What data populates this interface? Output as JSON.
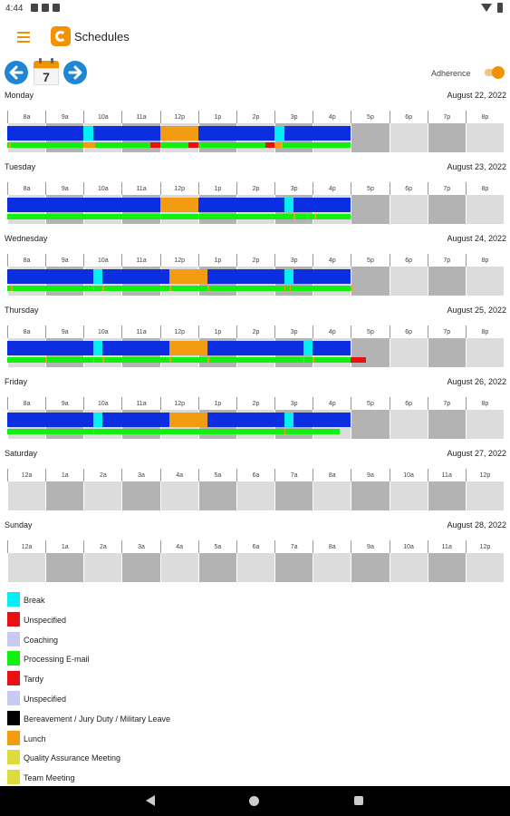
{
  "status": {
    "time": "4:44"
  },
  "app": {
    "title": "Schedules"
  },
  "nav": {
    "calendar_day": "7",
    "adherence_label": "Adherence",
    "adherence_on": true
  },
  "colors": {
    "schedule": "#0a2ee0",
    "break": "#00f0f5",
    "lunch": "#f39c12",
    "adherence": "#12f012",
    "tardy": "#e81111",
    "gap": "#b0b0b0",
    "odd_column": "#b3b3b3",
    "even_column": "#dcdcdc"
  },
  "days": [
    {
      "name": "Monday",
      "date": "August 22, 2022",
      "hours": [
        "8a",
        "9a",
        "10a",
        "11a",
        "12p",
        "1p",
        "2p",
        "3p",
        "4p",
        "5p",
        "6p",
        "7p",
        "8p"
      ],
      "schedule": [
        {
          "type": "schedule",
          "start": 0,
          "end": 2.0
        },
        {
          "type": "break",
          "start": 2.0,
          "end": 2.25
        },
        {
          "type": "schedule",
          "start": 2.25,
          "end": 4.0
        },
        {
          "type": "lunch",
          "start": 4.0,
          "end": 5.0
        },
        {
          "type": "schedule",
          "start": 5.0,
          "end": 7.0
        },
        {
          "type": "break",
          "start": 7.0,
          "end": 7.25
        },
        {
          "type": "schedule",
          "start": 7.25,
          "end": 9.0
        }
      ],
      "adherence": [
        {
          "type": "adherence",
          "start": 0,
          "end": 2.0
        },
        {
          "type": "lunch",
          "start": 2.0,
          "end": 2.3
        },
        {
          "type": "adherence",
          "start": 2.3,
          "end": 3.75
        },
        {
          "type": "tardy",
          "start": 3.75,
          "end": 4.0
        },
        {
          "type": "adherence",
          "start": 4.0,
          "end": 4.75
        },
        {
          "type": "tardy",
          "start": 4.75,
          "end": 5.0
        },
        {
          "type": "adherence",
          "start": 5.0,
          "end": 6.75
        },
        {
          "type": "tardy",
          "start": 6.75,
          "end": 7.0
        },
        {
          "type": "lunch",
          "start": 7.0,
          "end": 7.2
        },
        {
          "type": "adherence",
          "start": 7.2,
          "end": 9.0
        }
      ],
      "marks": [
        0.05,
        2.1,
        2.2,
        5.05,
        7.05
      ]
    },
    {
      "name": "Tuesday",
      "date": "August 23, 2022",
      "hours": [
        "8a",
        "9a",
        "10a",
        "11a",
        "12p",
        "1p",
        "2p",
        "3p",
        "4p",
        "5p",
        "6p",
        "7p",
        "8p"
      ],
      "schedule": [
        {
          "type": "schedule",
          "start": 0,
          "end": 4.0
        },
        {
          "type": "lunch",
          "start": 4.0,
          "end": 5.0
        },
        {
          "type": "schedule",
          "start": 5.0,
          "end": 7.25
        },
        {
          "type": "break",
          "start": 7.25,
          "end": 7.5
        },
        {
          "type": "schedule",
          "start": 7.5,
          "end": 9.0
        }
      ],
      "adherence": [
        {
          "type": "adherence",
          "start": 0,
          "end": 9.0
        }
      ],
      "marks": [
        4.0,
        5.0,
        7.5,
        7.85,
        8.05
      ]
    },
    {
      "name": "Wednesday",
      "date": "August 24, 2022",
      "hours": [
        "8a",
        "9a",
        "10a",
        "11a",
        "12p",
        "1p",
        "2p",
        "3p",
        "4p",
        "5p",
        "6p",
        "7p",
        "8p"
      ],
      "schedule": [
        {
          "type": "schedule",
          "start": 0,
          "end": 2.25
        },
        {
          "type": "break",
          "start": 2.25,
          "end": 2.5
        },
        {
          "type": "schedule",
          "start": 2.5,
          "end": 4.25
        },
        {
          "type": "lunch",
          "start": 4.25,
          "end": 5.25
        },
        {
          "type": "schedule",
          "start": 5.25,
          "end": 7.25
        },
        {
          "type": "break",
          "start": 7.25,
          "end": 7.5
        },
        {
          "type": "schedule",
          "start": 7.5,
          "end": 9.0
        }
      ],
      "adherence": [
        {
          "type": "adherence",
          "start": 0,
          "end": 9.0
        }
      ],
      "marks": [
        0.1,
        2.25,
        2.5,
        4.25,
        5.25,
        7.25,
        7.4,
        9.0
      ]
    },
    {
      "name": "Thursday",
      "date": "August 25, 2022",
      "hours": [
        "8a",
        "9a",
        "10a",
        "11a",
        "12p",
        "1p",
        "2p",
        "3p",
        "4p",
        "5p",
        "6p",
        "7p",
        "8p"
      ],
      "schedule": [
        {
          "type": "schedule",
          "start": 0,
          "end": 2.25
        },
        {
          "type": "break",
          "start": 2.25,
          "end": 2.5
        },
        {
          "type": "schedule",
          "start": 2.5,
          "end": 4.25
        },
        {
          "type": "lunch",
          "start": 4.25,
          "end": 5.25
        },
        {
          "type": "schedule",
          "start": 5.25,
          "end": 7.75
        },
        {
          "type": "break",
          "start": 7.75,
          "end": 8.0
        },
        {
          "type": "schedule",
          "start": 8.0,
          "end": 9.0
        }
      ],
      "adherence": [
        {
          "type": "adherence",
          "start": 0,
          "end": 9.0
        },
        {
          "type": "tardy",
          "start": 9.0,
          "end": 9.4
        }
      ],
      "marks": [
        1.0,
        2.25,
        2.5,
        4.25,
        5.25,
        7.75,
        8.0
      ]
    },
    {
      "name": "Friday",
      "date": "August 26, 2022",
      "hours": [
        "8a",
        "9a",
        "10a",
        "11a",
        "12p",
        "1p",
        "2p",
        "3p",
        "4p",
        "5p",
        "6p",
        "7p",
        "8p"
      ],
      "schedule": [
        {
          "type": "schedule",
          "start": 0,
          "end": 2.25
        },
        {
          "type": "break",
          "start": 2.25,
          "end": 2.5
        },
        {
          "type": "schedule",
          "start": 2.5,
          "end": 4.25
        },
        {
          "type": "lunch",
          "start": 4.25,
          "end": 5.25
        },
        {
          "type": "schedule",
          "start": 5.25,
          "end": 7.25
        },
        {
          "type": "break",
          "start": 7.25,
          "end": 7.5
        },
        {
          "type": "schedule",
          "start": 7.5,
          "end": 9.0
        }
      ],
      "adherence": [
        {
          "type": "adherence",
          "start": 0,
          "end": 8.7
        }
      ],
      "marks": [
        2.25,
        7.25
      ]
    },
    {
      "name": "Saturday",
      "date": "August 27, 2022",
      "hours": [
        "12a",
        "1a",
        "2a",
        "3a",
        "4a",
        "5a",
        "6a",
        "7a",
        "8a",
        "9a",
        "10a",
        "11a",
        "12p"
      ],
      "schedule": [],
      "adherence": [],
      "marks": []
    },
    {
      "name": "Sunday",
      "date": "August 28, 2022",
      "hours": [
        "12a",
        "1a",
        "2a",
        "3a",
        "4a",
        "5a",
        "6a",
        "7a",
        "8a",
        "9a",
        "10a",
        "11a",
        "12p"
      ],
      "schedule": [],
      "adherence": [],
      "marks": []
    }
  ],
  "legend": [
    {
      "label": "Break",
      "color": "#00f0f5"
    },
    {
      "label": "Unspecified",
      "color": "#e81111"
    },
    {
      "label": "Coaching",
      "color": "#c9caf2"
    },
    {
      "label": "Processing E-mail",
      "color": "#12f012"
    },
    {
      "label": "Tardy",
      "color": "#e81111"
    },
    {
      "label": "Unspecified",
      "color": "#c9caf2"
    },
    {
      "label": "Bereavement / Jury Duty / Military Leave",
      "color": "#000000"
    },
    {
      "label": "Lunch",
      "color": "#f39c12"
    },
    {
      "label": "Quality Assurance Meeting",
      "color": "#dcdc3c"
    },
    {
      "label": "Team Meeting",
      "color": "#dcdc3c"
    }
  ]
}
